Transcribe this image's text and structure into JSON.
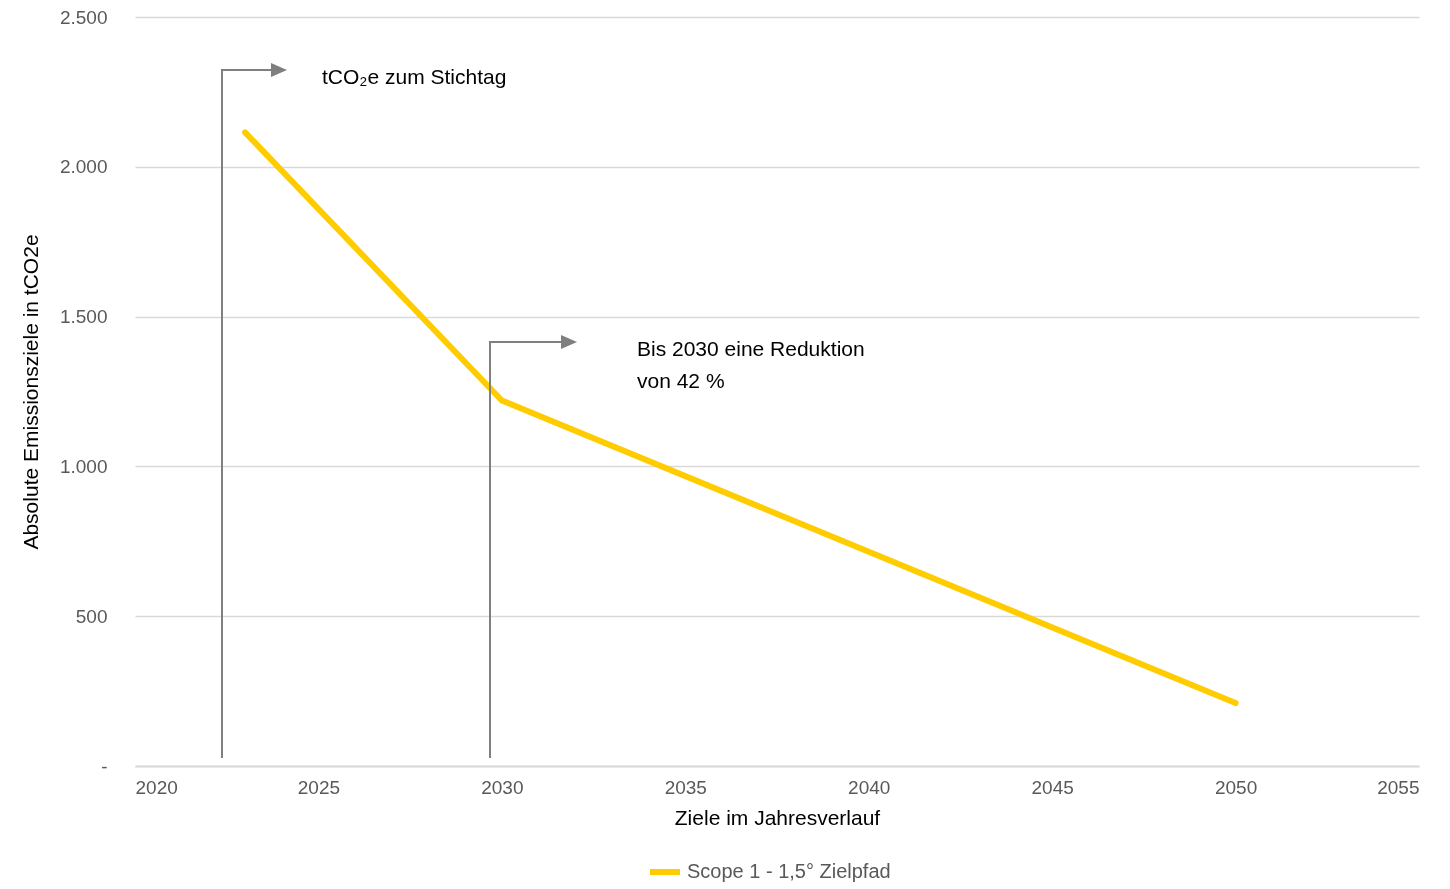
{
  "chart_data": {
    "type": "line",
    "xlabel": "Ziele im Jahresverlauf",
    "ylabel": "Absolute Emissionsziele in tCO2e",
    "x": [
      2023,
      2030,
      2050
    ],
    "series": [
      {
        "name": "Scope 1 - 1,5° Zielpfad",
        "color": "#ffcc00",
        "values": [
          2115,
          1220,
          210
        ]
      }
    ],
    "xlim": [
      2020,
      2055
    ],
    "xticks": [
      2020,
      2025,
      2030,
      2035,
      2040,
      2045,
      2050,
      2055
    ],
    "ylim": [
      0,
      2500
    ],
    "yticks": [
      {
        "value": 0,
        "label": "-"
      },
      500,
      {
        "value": 1000,
        "label": "1.000"
      },
      {
        "value": 1500,
        "label": "1.500"
      },
      {
        "value": 2000,
        "label": "2.000"
      },
      {
        "value": 2500,
        "label": "2.500"
      }
    ],
    "grid": "y",
    "legend": "bottom",
    "marker": "none",
    "line_style": "solid",
    "annotations": [
      "tCO₂e zum Stichtag",
      "Bis 2030 eine Reduktion\nvon 42 %"
    ]
  }
}
